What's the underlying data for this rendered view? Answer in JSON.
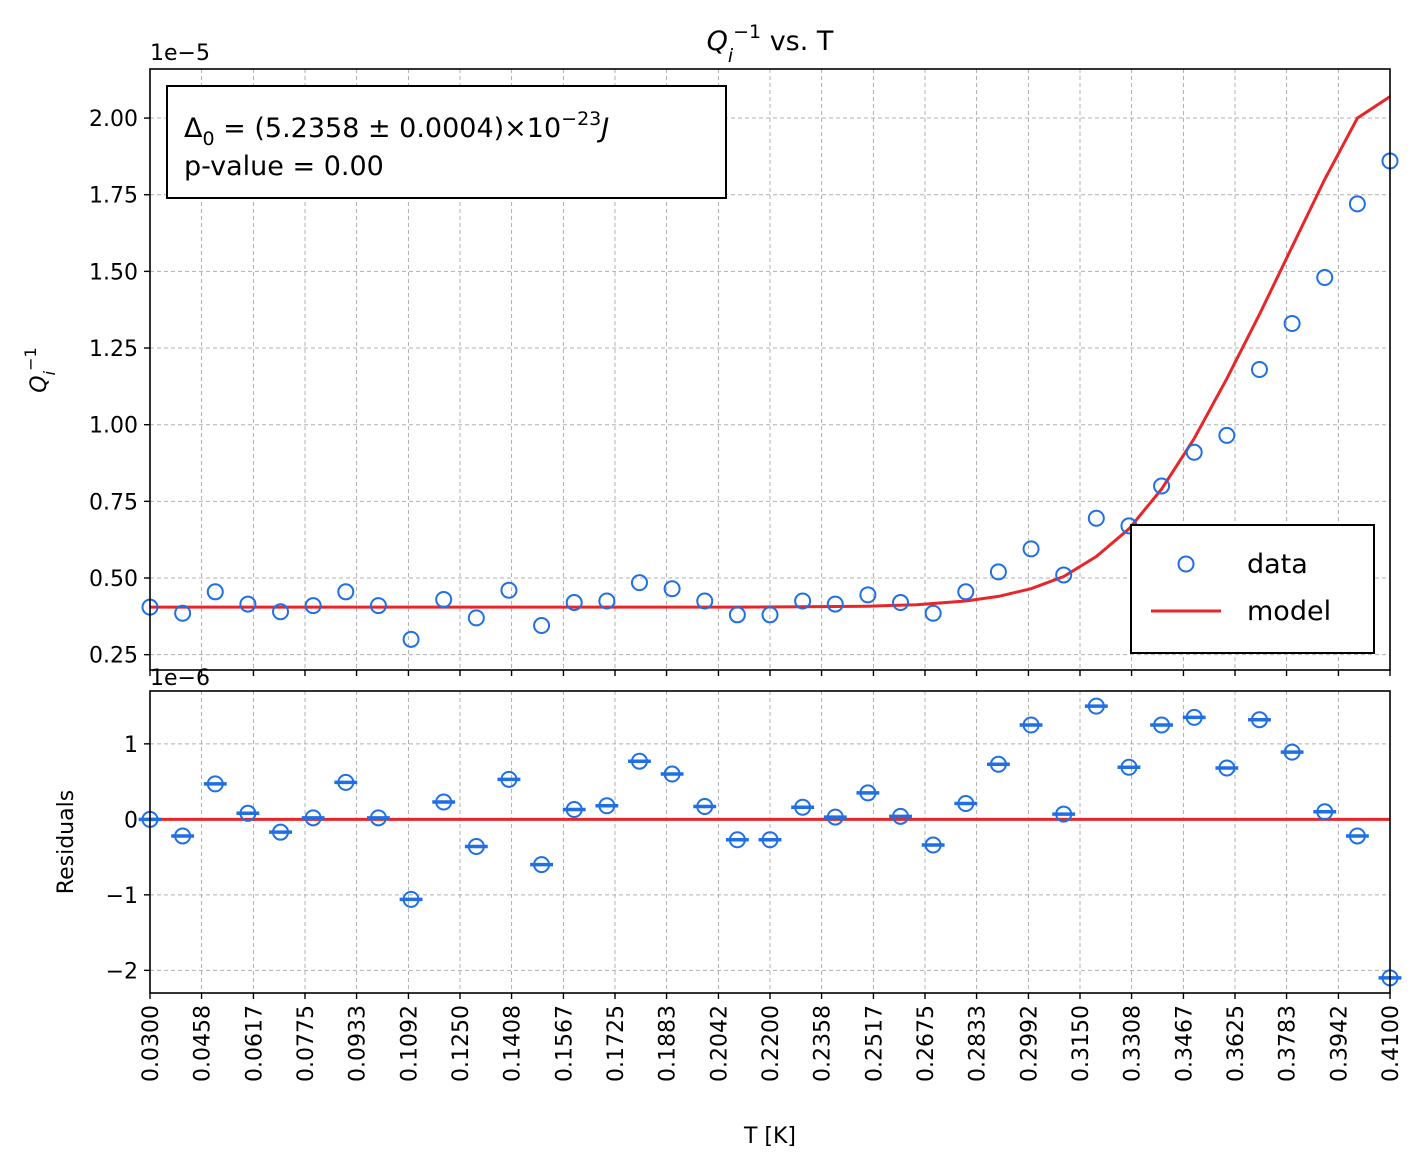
{
  "chart_data": [
    {
      "type": "scatter",
      "title": "Q_i^{-1} vs. T",
      "title_parts": {
        "symbol": "Q",
        "sub": "i",
        "sup": "−1",
        "rest": " vs. T"
      },
      "ylabel": "Q_i^{-1}",
      "offset_label": "1e−5",
      "xlim": [
        0.03,
        0.41
      ],
      "ylim": [
        0.2,
        2.16
      ],
      "yticks": [
        "0.25",
        "0.50",
        "0.75",
        "1.00",
        "1.25",
        "1.50",
        "1.75",
        "2.00"
      ],
      "grid": true,
      "annotation": {
        "line1": {
          "delta": "Δ",
          "sub": "0",
          "text": " = (5.2358 ± 0.0004)×10",
          "sup": "−23",
          "unit": "J"
        },
        "line2": "p-value = 0.00"
      },
      "legend": {
        "placement": "lower right",
        "entries": [
          "data",
          "model"
        ]
      },
      "series": [
        {
          "name": "data",
          "marker": "open-circle",
          "color": "#1f6fe5",
          "x": [
            0.03,
            0.04,
            0.05,
            0.06,
            0.07,
            0.08,
            0.09,
            0.1,
            0.11,
            0.12,
            0.13,
            0.14,
            0.15,
            0.16,
            0.17,
            0.18,
            0.19,
            0.2,
            0.21,
            0.22,
            0.23,
            0.24,
            0.25,
            0.26,
            0.27,
            0.28,
            0.29,
            0.3,
            0.31,
            0.32,
            0.33,
            0.34,
            0.35,
            0.36,
            0.37,
            0.38,
            0.39,
            0.4,
            0.41
          ],
          "y": [
            0.405,
            0.385,
            0.455,
            0.415,
            0.39,
            0.41,
            0.455,
            0.41,
            0.3,
            0.43,
            0.37,
            0.46,
            0.345,
            0.42,
            0.425,
            0.485,
            0.465,
            0.425,
            0.38,
            0.38,
            0.425,
            0.415,
            0.445,
            0.42,
            0.385,
            0.455,
            0.52,
            0.595,
            0.51,
            0.695,
            0.67,
            0.8,
            0.91,
            0.965,
            1.18,
            1.33,
            1.48,
            1.72,
            1.86
          ]
        },
        {
          "name": "model",
          "color": "#e8262a",
          "x": [
            0.03,
            0.05,
            0.07,
            0.09,
            0.11,
            0.13,
            0.15,
            0.17,
            0.19,
            0.21,
            0.23,
            0.25,
            0.265,
            0.28,
            0.29,
            0.3,
            0.31,
            0.32,
            0.33,
            0.34,
            0.35,
            0.36,
            0.37,
            0.38,
            0.39,
            0.4,
            0.41
          ],
          "y": [
            0.405,
            0.405,
            0.405,
            0.405,
            0.405,
            0.405,
            0.405,
            0.405,
            0.405,
            0.405,
            0.406,
            0.408,
            0.413,
            0.425,
            0.44,
            0.465,
            0.505,
            0.57,
            0.66,
            0.79,
            0.955,
            1.15,
            1.36,
            1.58,
            1.8,
            2.0,
            2.07
          ]
        }
      ]
    },
    {
      "type": "scatter",
      "ylabel": "Residuals",
      "xlabel": "T [K]",
      "offset_label": "1e−6",
      "xlim": [
        0.03,
        0.41
      ],
      "ylim": [
        -2.3,
        1.7
      ],
      "yticks": [
        "−2",
        "−1",
        "0",
        "1"
      ],
      "xticks": [
        "0.0300",
        "0.0458",
        "0.0617",
        "0.0775",
        "0.0933",
        "0.1092",
        "0.1250",
        "0.1408",
        "0.1567",
        "0.1725",
        "0.1883",
        "0.2042",
        "0.2200",
        "0.2358",
        "0.2517",
        "0.2675",
        "0.2833",
        "0.2992",
        "0.3150",
        "0.3308",
        "0.3467",
        "0.3625",
        "0.3783",
        "0.3942",
        "0.4100"
      ],
      "grid": true,
      "series": [
        {
          "marker": "open-circle-with-xerror",
          "color": "#1f6fe5",
          "x": [
            0.03,
            0.04,
            0.05,
            0.06,
            0.07,
            0.08,
            0.09,
            0.1,
            0.11,
            0.12,
            0.13,
            0.14,
            0.15,
            0.16,
            0.17,
            0.18,
            0.19,
            0.2,
            0.21,
            0.22,
            0.23,
            0.24,
            0.25,
            0.26,
            0.27,
            0.28,
            0.29,
            0.3,
            0.31,
            0.32,
            0.33,
            0.34,
            0.35,
            0.36,
            0.37,
            0.38,
            0.39,
            0.4,
            0.41
          ],
          "y": [
            0.0,
            -0.22,
            0.47,
            0.08,
            -0.17,
            0.02,
            0.49,
            0.02,
            -1.06,
            0.23,
            -0.36,
            0.53,
            -0.6,
            0.13,
            0.18,
            0.77,
            0.6,
            0.17,
            -0.27,
            -0.27,
            0.16,
            0.03,
            0.35,
            0.04,
            -0.34,
            0.21,
            0.73,
            1.25,
            0.07,
            1.5,
            0.69,
            1.25,
            1.35,
            0.68,
            1.32,
            0.89,
            0.1,
            -0.22,
            -2.1
          ],
          "xerr": 0.0035
        },
        {
          "type": "line",
          "color": "#e8262a",
          "x": [
            0.03,
            0.41
          ],
          "y": [
            0,
            0
          ]
        }
      ]
    }
  ]
}
